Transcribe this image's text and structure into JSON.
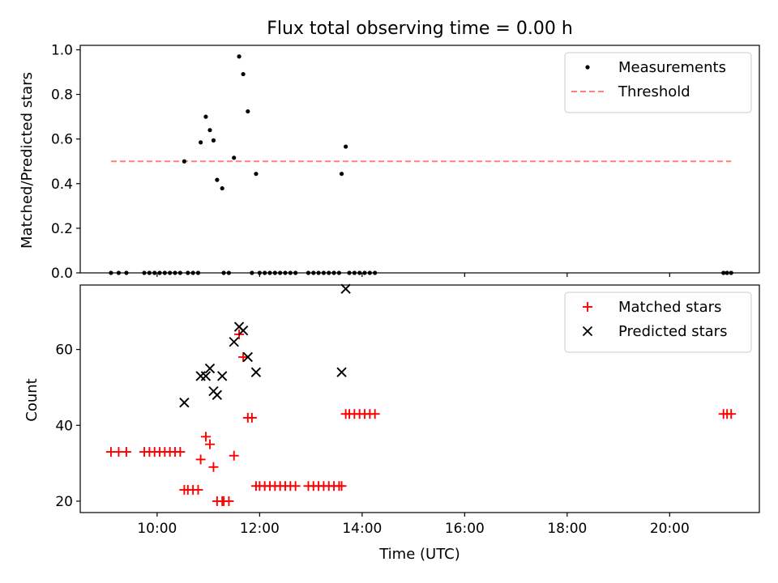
{
  "figure": {
    "title": "Flux total observing time = 0.00 h"
  },
  "chart_data": [
    {
      "type": "scatter",
      "ylabel": "Matched/Predicted stars",
      "xlabel": "",
      "xlim": [
        8.5,
        21.75
      ],
      "ylim": [
        0,
        1.02
      ],
      "yticks": [
        0.0,
        0.2,
        0.4,
        0.6,
        0.8,
        1.0
      ],
      "ytick_labels": [
        "0.0",
        "0.2",
        "0.4",
        "0.6",
        "0.8",
        "1.0"
      ],
      "legend_position": "top-right",
      "threshold": {
        "name": "Threshold",
        "value": 0.5,
        "x_range": [
          9.1,
          21.2
        ],
        "color": "#ff7f7f",
        "style": "dashed"
      },
      "series": [
        {
          "name": "Measurements",
          "marker": "dot",
          "color": "#000000",
          "points": [
            [
              9.1,
              0
            ],
            [
              9.25,
              0
            ],
            [
              9.4,
              0
            ],
            [
              9.75,
              0
            ],
            [
              9.85,
              0
            ],
            [
              9.95,
              0
            ],
            [
              10.05,
              0
            ],
            [
              10.15,
              0
            ],
            [
              10.25,
              0
            ],
            [
              10.35,
              0
            ],
            [
              10.45,
              0
            ],
            [
              10.6,
              0
            ],
            [
              10.7,
              0
            ],
            [
              10.8,
              0
            ],
            [
              11.3,
              0
            ],
            [
              11.4,
              0
            ],
            [
              11.85,
              0
            ],
            [
              12.0,
              0
            ],
            [
              12.1,
              0
            ],
            [
              12.2,
              0
            ],
            [
              12.3,
              0
            ],
            [
              12.4,
              0
            ],
            [
              12.5,
              0
            ],
            [
              12.6,
              0
            ],
            [
              12.7,
              0
            ],
            [
              12.95,
              0
            ],
            [
              13.05,
              0
            ],
            [
              13.15,
              0
            ],
            [
              13.25,
              0
            ],
            [
              13.35,
              0
            ],
            [
              13.45,
              0
            ],
            [
              13.55,
              0
            ],
            [
              13.75,
              0
            ],
            [
              13.85,
              0
            ],
            [
              13.95,
              0
            ],
            [
              14.05,
              0
            ],
            [
              14.15,
              0
            ],
            [
              14.25,
              0
            ],
            [
              21.05,
              0
            ],
            [
              21.12,
              0
            ],
            [
              21.2,
              0
            ],
            [
              10.53,
              0.5
            ],
            [
              10.85,
              0.585
            ],
            [
              10.95,
              0.7
            ],
            [
              11.03,
              0.64
            ],
            [
              11.1,
              0.594
            ],
            [
              11.17,
              0.417
            ],
            [
              11.27,
              0.379
            ],
            [
              11.5,
              0.516
            ],
            [
              11.6,
              0.97
            ],
            [
              11.68,
              0.891
            ],
            [
              11.77,
              0.724
            ],
            [
              11.93,
              0.444
            ],
            [
              13.6,
              0.444
            ],
            [
              13.68,
              0.566
            ]
          ]
        }
      ]
    },
    {
      "type": "scatter",
      "ylabel": "Count",
      "xlabel": "Time (UTC)",
      "xlim": [
        8.5,
        21.75
      ],
      "ylim": [
        17,
        77
      ],
      "xticks": [
        10,
        12,
        14,
        16,
        18,
        20
      ],
      "xtick_labels": [
        "10:00",
        "12:00",
        "14:00",
        "16:00",
        "18:00",
        "20:00"
      ],
      "yticks": [
        20,
        40,
        60
      ],
      "ytick_labels": [
        "20",
        "40",
        "60"
      ],
      "legend_position": "top-right",
      "series": [
        {
          "name": "Matched stars",
          "marker": "plus",
          "color": "#ff0000",
          "points": [
            [
              9.1,
              33
            ],
            [
              9.25,
              33
            ],
            [
              9.4,
              33
            ],
            [
              9.75,
              33
            ],
            [
              9.85,
              33
            ],
            [
              9.95,
              33
            ],
            [
              10.05,
              33
            ],
            [
              10.15,
              33
            ],
            [
              10.25,
              33
            ],
            [
              10.35,
              33
            ],
            [
              10.45,
              33
            ],
            [
              10.53,
              23
            ],
            [
              10.6,
              23
            ],
            [
              10.7,
              23
            ],
            [
              10.8,
              23
            ],
            [
              10.85,
              31
            ],
            [
              10.95,
              37
            ],
            [
              11.03,
              35
            ],
            [
              11.1,
              29
            ],
            [
              11.17,
              20
            ],
            [
              11.27,
              20
            ],
            [
              11.3,
              20
            ],
            [
              11.4,
              20
            ],
            [
              11.5,
              32
            ],
            [
              11.6,
              64
            ],
            [
              11.68,
              58
            ],
            [
              11.77,
              42
            ],
            [
              11.85,
              42
            ],
            [
              11.93,
              24
            ],
            [
              12.0,
              24
            ],
            [
              12.1,
              24
            ],
            [
              12.2,
              24
            ],
            [
              12.3,
              24
            ],
            [
              12.4,
              24
            ],
            [
              12.5,
              24
            ],
            [
              12.6,
              24
            ],
            [
              12.7,
              24
            ],
            [
              12.95,
              24
            ],
            [
              13.05,
              24
            ],
            [
              13.15,
              24
            ],
            [
              13.25,
              24
            ],
            [
              13.35,
              24
            ],
            [
              13.45,
              24
            ],
            [
              13.55,
              24
            ],
            [
              13.6,
              24
            ],
            [
              13.68,
              43
            ],
            [
              13.75,
              43
            ],
            [
              13.85,
              43
            ],
            [
              13.95,
              43
            ],
            [
              14.05,
              43
            ],
            [
              14.15,
              43
            ],
            [
              14.25,
              43
            ],
            [
              21.05,
              43
            ],
            [
              21.12,
              43
            ],
            [
              21.2,
              43
            ]
          ]
        },
        {
          "name": "Predicted stars",
          "marker": "x",
          "color": "#000000",
          "points": [
            [
              10.53,
              46
            ],
            [
              10.85,
              53
            ],
            [
              10.95,
              53
            ],
            [
              11.03,
              55
            ],
            [
              11.1,
              49
            ],
            [
              11.17,
              48
            ],
            [
              11.27,
              53
            ],
            [
              11.5,
              62
            ],
            [
              11.6,
              66
            ],
            [
              11.68,
              65
            ],
            [
              11.77,
              58
            ],
            [
              11.93,
              54
            ],
            [
              13.6,
              54
            ],
            [
              13.68,
              76
            ]
          ]
        }
      ]
    }
  ]
}
